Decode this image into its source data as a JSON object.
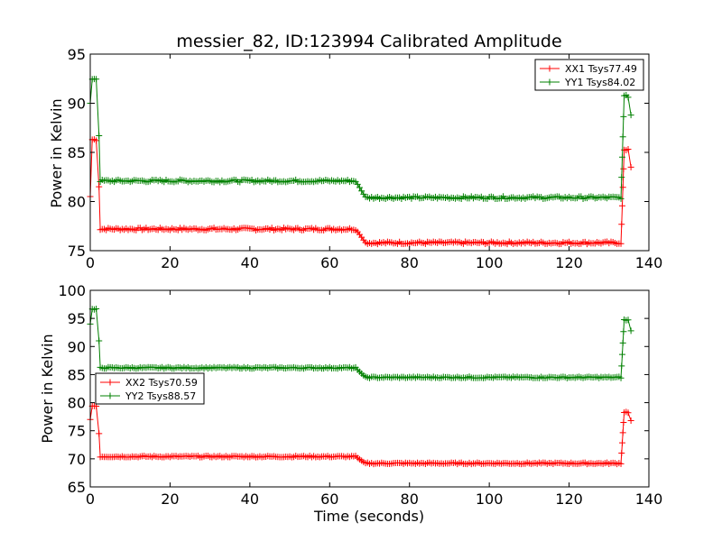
{
  "chart_data": [
    {
      "type": "line",
      "title": "messier_82, ID:123994 Calibrated Amplitude",
      "xlabel": "",
      "ylabel": "Power in Kelvin",
      "xlim": [
        0,
        140
      ],
      "ylim": [
        75,
        95
      ],
      "xticks": [
        0,
        20,
        40,
        60,
        80,
        100,
        120,
        140
      ],
      "yticks": [
        75,
        80,
        85,
        90,
        95
      ],
      "legend": "top-right",
      "grid": false,
      "series": [
        {
          "name": "XX1 Tsys77.49",
          "color": "#ff0000",
          "segments": [
            {
              "x0": 0,
              "x1": 0,
              "y": 80.5
            },
            {
              "x0": 0.5,
              "x1": 1.9,
              "y": 86.3
            },
            {
              "x0": 2.2,
              "x1": 2.2,
              "y": 81.5
            },
            {
              "x0": 2.5,
              "x1": 66.5,
              "y": 77.2
            },
            {
              "x0": 69.0,
              "x1": 133.0,
              "y": 75.8
            },
            {
              "x0": 133.8,
              "x1": 135.0,
              "y": 85.2
            },
            {
              "x0": 135.5,
              "x1": 135.5,
              "y": 83.5
            }
          ],
          "transitions": [
            [
              66.5,
              77.2,
              69.0,
              75.8
            ],
            [
              133.0,
              75.8,
              133.8,
              85.2
            ]
          ]
        },
        {
          "name": "YY1 Tsys84.02",
          "color": "#008000",
          "segments": [
            {
              "x0": 0,
              "x1": 0,
              "y": 90.0
            },
            {
              "x0": 0.5,
              "x1": 1.9,
              "y": 92.5
            },
            {
              "x0": 2.2,
              "x1": 2.2,
              "y": 86.7
            },
            {
              "x0": 2.5,
              "x1": 66.5,
              "y": 82.1
            },
            {
              "x0": 69.0,
              "x1": 133.0,
              "y": 80.4
            },
            {
              "x0": 133.8,
              "x1": 135.0,
              "y": 90.7
            },
            {
              "x0": 135.5,
              "x1": 135.5,
              "y": 88.8
            }
          ],
          "transitions": [
            [
              66.5,
              82.1,
              69.0,
              80.4
            ],
            [
              133.0,
              80.4,
              133.8,
              90.7
            ]
          ]
        }
      ]
    },
    {
      "type": "line",
      "title": "",
      "xlabel": "Time (seconds)",
      "ylabel": "Power in Kelvin",
      "xlim": [
        0,
        140
      ],
      "ylim": [
        65,
        100
      ],
      "xticks": [
        0,
        20,
        40,
        60,
        80,
        100,
        120,
        140
      ],
      "yticks": [
        65,
        70,
        75,
        80,
        85,
        90,
        95,
        100
      ],
      "legend": "center-left",
      "grid": false,
      "series": [
        {
          "name": "XX2 Tsys70.59",
          "color": "#ff0000",
          "segments": [
            {
              "x0": 0,
              "x1": 0,
              "y": 77.0
            },
            {
              "x0": 0.5,
              "x1": 1.9,
              "y": 79.4
            },
            {
              "x0": 2.2,
              "x1": 2.2,
              "y": 74.5
            },
            {
              "x0": 2.5,
              "x1": 66.5,
              "y": 70.4
            },
            {
              "x0": 69.0,
              "x1": 133.0,
              "y": 69.2
            },
            {
              "x0": 133.8,
              "x1": 135.0,
              "y": 78.3
            },
            {
              "x0": 135.5,
              "x1": 135.5,
              "y": 76.8
            }
          ],
          "transitions": [
            [
              66.5,
              70.4,
              69.0,
              69.2
            ],
            [
              133.0,
              69.2,
              133.8,
              78.3
            ]
          ]
        },
        {
          "name": "YY2 Tsys88.57",
          "color": "#008000",
          "segments": [
            {
              "x0": 0,
              "x1": 0,
              "y": 94.0
            },
            {
              "x0": 0.5,
              "x1": 1.9,
              "y": 96.6
            },
            {
              "x0": 2.2,
              "x1": 2.2,
              "y": 91.0
            },
            {
              "x0": 2.5,
              "x1": 66.5,
              "y": 86.2
            },
            {
              "x0": 69.0,
              "x1": 133.0,
              "y": 84.5
            },
            {
              "x0": 133.8,
              "x1": 135.0,
              "y": 94.7
            },
            {
              "x0": 135.5,
              "x1": 135.5,
              "y": 92.8
            }
          ],
          "transitions": [
            [
              66.5,
              86.2,
              69.0,
              84.5
            ],
            [
              133.0,
              84.5,
              133.8,
              94.7
            ]
          ]
        }
      ]
    }
  ]
}
